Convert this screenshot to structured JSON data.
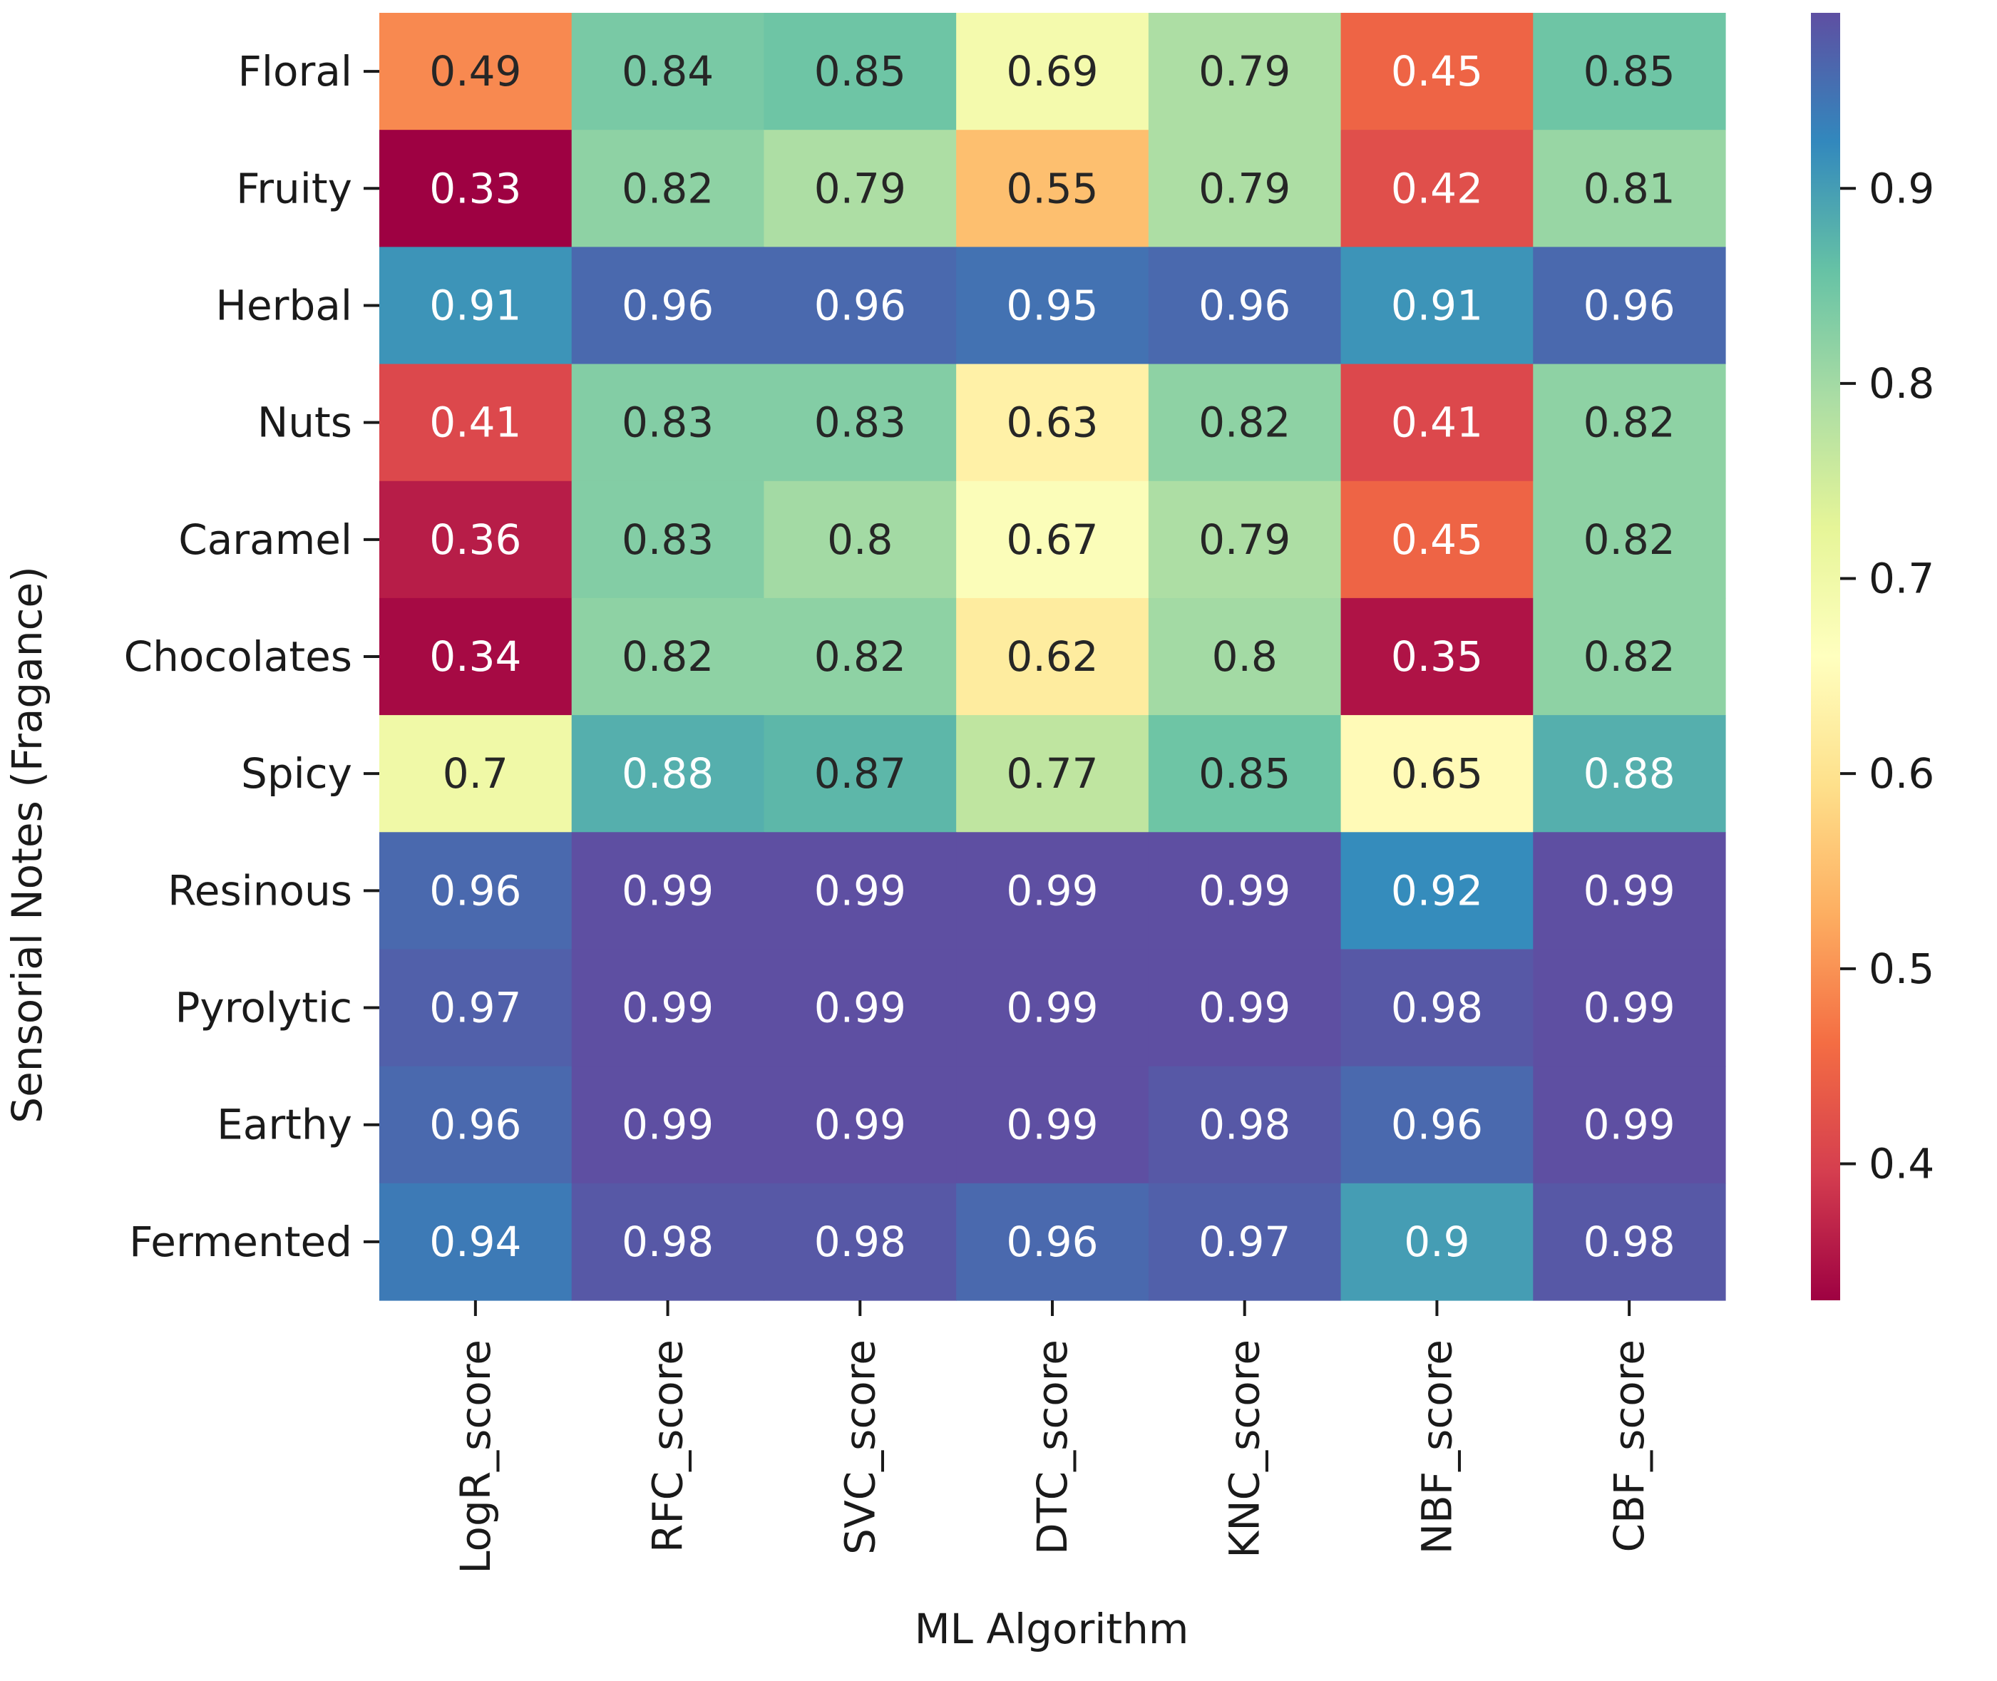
{
  "chart_data": {
    "type": "heatmap",
    "title": "",
    "xlabel": "ML Algorithm",
    "ylabel": "Sensorial Notes (Fragance)",
    "x_categories": [
      "LogR_score",
      "RFC_score",
      "SVC_score",
      "DTC_score",
      "KNC_score",
      "NBF_score",
      "CBF_score"
    ],
    "y_categories": [
      "Floral",
      "Fruity",
      "Herbal",
      "Nuts",
      "Caramel",
      "Chocolates",
      "Spicy",
      "Resinous",
      "Pyrolytic",
      "Earthy",
      "Fermented"
    ],
    "values": [
      [
        0.49,
        0.84,
        0.85,
        0.69,
        0.79,
        0.45,
        0.85
      ],
      [
        0.33,
        0.82,
        0.79,
        0.55,
        0.79,
        0.42,
        0.81
      ],
      [
        0.91,
        0.96,
        0.96,
        0.95,
        0.96,
        0.91,
        0.96
      ],
      [
        0.41,
        0.83,
        0.83,
        0.63,
        0.82,
        0.41,
        0.82
      ],
      [
        0.36,
        0.83,
        0.8,
        0.67,
        0.79,
        0.45,
        0.82
      ],
      [
        0.34,
        0.82,
        0.82,
        0.62,
        0.8,
        0.35,
        0.82
      ],
      [
        0.7,
        0.88,
        0.87,
        0.77,
        0.85,
        0.65,
        0.88
      ],
      [
        0.96,
        0.99,
        0.99,
        0.99,
        0.99,
        0.92,
        0.99
      ],
      [
        0.97,
        0.99,
        0.99,
        0.99,
        0.99,
        0.98,
        0.99
      ],
      [
        0.96,
        0.99,
        0.99,
        0.99,
        0.98,
        0.96,
        0.99
      ],
      [
        0.94,
        0.98,
        0.98,
        0.96,
        0.97,
        0.9,
        0.98
      ]
    ],
    "cell_labels": [
      [
        "0.49",
        "0.84",
        "0.85",
        "0.69",
        "0.79",
        "0.45",
        "0.85"
      ],
      [
        "0.33",
        "0.82",
        "0.79",
        "0.55",
        "0.79",
        "0.42",
        "0.81"
      ],
      [
        "0.91",
        "0.96",
        "0.96",
        "0.95",
        "0.96",
        "0.91",
        "0.96"
      ],
      [
        "0.41",
        "0.83",
        "0.83",
        "0.63",
        "0.82",
        "0.41",
        "0.82"
      ],
      [
        "0.36",
        "0.83",
        "0.8",
        "0.67",
        "0.79",
        "0.45",
        "0.82"
      ],
      [
        "0.34",
        "0.82",
        "0.82",
        "0.62",
        "0.8",
        "0.35",
        "0.82"
      ],
      [
        "0.7",
        "0.88",
        "0.87",
        "0.77",
        "0.85",
        "0.65",
        "0.88"
      ],
      [
        "0.96",
        "0.99",
        "0.99",
        "0.99",
        "0.99",
        "0.92",
        "0.99"
      ],
      [
        "0.97",
        "0.99",
        "0.99",
        "0.99",
        "0.99",
        "0.98",
        "0.99"
      ],
      [
        "0.96",
        "0.99",
        "0.99",
        "0.99",
        "0.98",
        "0.96",
        "0.99"
      ],
      [
        "0.94",
        "0.98",
        "0.98",
        "0.96",
        "0.97",
        "0.9",
        "0.98"
      ]
    ],
    "colormap": "Spectral",
    "color_range": [
      0.33,
      0.99
    ],
    "colorbar": {
      "position": "right",
      "ticks": [
        0.4,
        0.5,
        0.6,
        0.7,
        0.8,
        0.9
      ],
      "tick_labels": [
        "0.4",
        "0.5",
        "0.6",
        "0.7",
        "0.8",
        "0.9"
      ]
    },
    "colormap_stops": [
      "#9e0142",
      "#d53e4f",
      "#f46d43",
      "#fdae61",
      "#fee08b",
      "#ffffbf",
      "#e6f598",
      "#abdda4",
      "#66c2a5",
      "#3288bd",
      "#5e4fa2"
    ],
    "text_colors": {
      "dark": "#262626",
      "light": "#ffffff"
    },
    "grid": false
  }
}
